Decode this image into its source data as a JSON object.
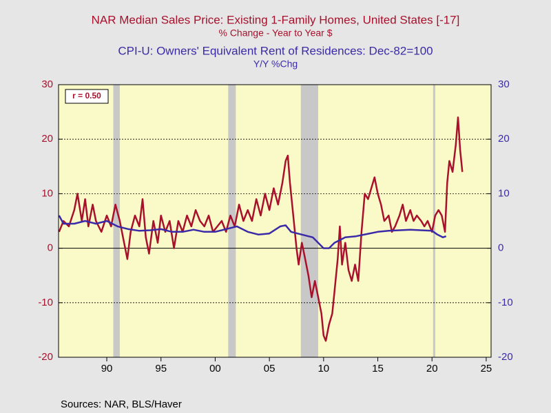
{
  "chart_data": {
    "type": "line",
    "title": "NAR Median Sales Price: Existing 1-Family Homes, United States [-17]",
    "subtitle": "% Change - Year to Year    $",
    "title2": "CPI-U: Owners' Equivalent Rent of Residences: Dec-82=100",
    "subtitle2": "Y/Y %Chg",
    "annotation": "r = 0.50",
    "source": "Sources:  NAR, BLS/Haver",
    "xlim": [
      1985.55,
      2025.45
    ],
    "xticks": [
      {
        "value": 1990,
        "label": "90"
      },
      {
        "value": 1995,
        "label": "95"
      },
      {
        "value": 2000,
        "label": "00"
      },
      {
        "value": 2005,
        "label": "05"
      },
      {
        "value": 2010,
        "label": "10"
      },
      {
        "value": 2015,
        "label": "15"
      },
      {
        "value": 2020,
        "label": "20"
      },
      {
        "value": 2025,
        "label": "25"
      }
    ],
    "ylim": [
      -20,
      30
    ],
    "yticks": [
      -20,
      -10,
      0,
      10,
      20,
      30
    ],
    "y2lim": [
      -20,
      30
    ],
    "y2ticks": [
      -20,
      -10,
      0,
      10,
      20,
      30
    ],
    "grid": true,
    "recessions": [
      [
        1990.6,
        1991.2
      ],
      [
        2001.2,
        2001.9
      ],
      [
        2007.9,
        2009.5
      ],
      [
        2020.1,
        2020.3
      ]
    ],
    "series": [
      {
        "name": "NAR Median Sales Price: Existing 1-Family Homes, United States [-17]",
        "color": "#a8102c",
        "x": [
          1985.6,
          1986,
          1986.5,
          1987,
          1987.3,
          1987.7,
          1988,
          1988.3,
          1988.7,
          1989,
          1989.5,
          1990,
          1990.4,
          1990.8,
          1991.2,
          1991.6,
          1991.9,
          1992.2,
          1992.6,
          1993,
          1993.3,
          1993.6,
          1993.9,
          1994.3,
          1994.7,
          1995,
          1995.4,
          1995.8,
          1996.2,
          1996.6,
          1997,
          1997.4,
          1997.8,
          1998.2,
          1998.6,
          1999,
          1999.4,
          1999.8,
          2000.2,
          2000.6,
          2001,
          2001.4,
          2001.8,
          2002.2,
          2002.6,
          2003,
          2003.4,
          2003.8,
          2004.2,
          2004.6,
          2005,
          2005.4,
          2005.8,
          2006.2,
          2006.5,
          2006.7,
          2006.9,
          2007.2,
          2007.5,
          2007.7,
          2008,
          2008.3,
          2008.6,
          2008.9,
          2009.2,
          2009.5,
          2009.8,
          2010,
          2010.2,
          2010.5,
          2010.8,
          2011,
          2011.3,
          2011.5,
          2011.7,
          2012,
          2012.3,
          2012.6,
          2012.9,
          2013.2,
          2013.5,
          2013.8,
          2014.1,
          2014.4,
          2014.7,
          2015,
          2015.3,
          2015.6,
          2016,
          2016.3,
          2016.6,
          2017,
          2017.3,
          2017.6,
          2018,
          2018.3,
          2018.6,
          2019,
          2019.3,
          2019.6,
          2020,
          2020.3,
          2020.6,
          2020.9,
          2021.2,
          2021.4,
          2021.6,
          2021.9,
          2022.2,
          2022.4,
          2022.6,
          2022.8
        ],
        "values": [
          3,
          5,
          4,
          7,
          10,
          5,
          9,
          4,
          8,
          5,
          3,
          6,
          4,
          8,
          5,
          1,
          -2,
          3,
          6,
          4,
          9,
          2,
          -1,
          5,
          1,
          6,
          3,
          5,
          0,
          5,
          3,
          6,
          4,
          7,
          5,
          4,
          6,
          3,
          4,
          5,
          3,
          6,
          4,
          8,
          5,
          7,
          5,
          9,
          6,
          10,
          7,
          11,
          8,
          12,
          16,
          17,
          12,
          6,
          0,
          -3,
          1,
          -2,
          -5,
          -9,
          -6,
          -9,
          -12,
          -16,
          -17,
          -14,
          -12,
          -8,
          -2,
          4,
          -3,
          1,
          -4,
          -6,
          -3,
          -6,
          3,
          10,
          9,
          11,
          13,
          10,
          8,
          5,
          6,
          3,
          4,
          6,
          8,
          5,
          7,
          5,
          6,
          5,
          4,
          5,
          3,
          6,
          7,
          6,
          3,
          12,
          16,
          14,
          19,
          24,
          18,
          14
        ]
      },
      {
        "name": "CPI-U: Owners' Equivalent Rent of Residences: Dec-82=100",
        "color": "#3a2aa8",
        "axis": "y2",
        "x": [
          1985.6,
          1986,
          1987,
          1988,
          1989,
          1990,
          1991,
          1992,
          1993,
          1994,
          1995,
          1996,
          1997,
          1998,
          1999,
          2000,
          2001,
          2002,
          2003,
          2004,
          2005,
          2006,
          2006.5,
          2007,
          2008,
          2009,
          2009.5,
          2010,
          2010.5,
          2011,
          2012,
          2013,
          2014,
          2015,
          2016,
          2017,
          2018,
          2019,
          2020,
          2020.5,
          2021,
          2021.3
        ],
        "values": [
          6,
          4.5,
          4.5,
          5,
          4.5,
          5,
          4,
          3.5,
          3.2,
          3.3,
          3.5,
          3,
          3,
          3.4,
          3,
          3,
          3.5,
          4,
          3,
          2.5,
          2.7,
          4,
          4.2,
          3,
          2.5,
          2,
          1,
          0,
          0,
          1,
          2,
          2.2,
          2.6,
          3,
          3.2,
          3.3,
          3.4,
          3.3,
          3.2,
          2.5,
          2,
          2.2
        ]
      }
    ]
  }
}
